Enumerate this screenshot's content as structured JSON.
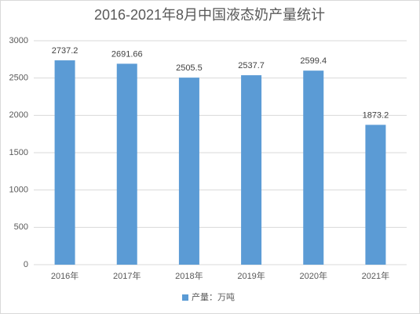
{
  "chart_data": {
    "type": "bar",
    "title": "2016-2021年8月中国液态奶产量统计",
    "categories": [
      "2016年",
      "2017年",
      "2018年",
      "2019年",
      "2020年",
      "2021年"
    ],
    "series": [
      {
        "name": "产量：万吨",
        "color": "#5b9bd5",
        "values": [
          2737.2,
          2691.66,
          2505.5,
          2537.7,
          2599.4,
          1873.2
        ]
      }
    ],
    "ylim": [
      0,
      3000
    ],
    "yticks": [
      0,
      500,
      1000,
      1500,
      2000,
      2500,
      3000
    ],
    "grid": true,
    "legend": "bottom"
  }
}
